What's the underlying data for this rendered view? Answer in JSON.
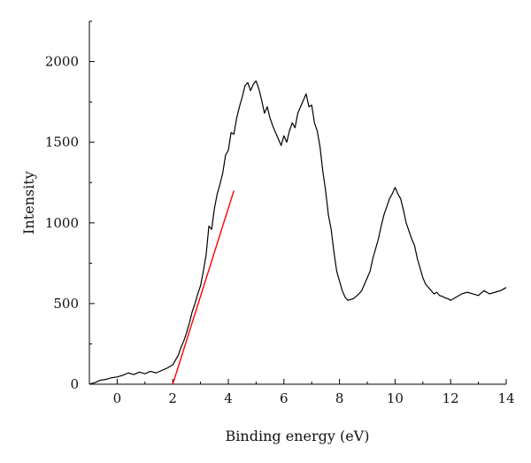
{
  "chart_data": {
    "type": "line",
    "title": "",
    "xlabel": "Binding energy (eV)",
    "ylabel": "Intensity",
    "xlim": [
      -1,
      14
    ],
    "ylim": [
      0,
      2250
    ],
    "x_ticks": [
      0,
      2,
      4,
      6,
      8,
      10,
      12,
      14
    ],
    "y_ticks": [
      0,
      500,
      1000,
      1500,
      2000
    ],
    "x_minor_step": 1,
    "y_minor_step": 250,
    "grid": false,
    "legend": "none",
    "series": [
      {
        "color": "#000000",
        "x": [
          -1.0,
          -0.8,
          -0.6,
          -0.4,
          -0.2,
          0.0,
          0.2,
          0.4,
          0.6,
          0.8,
          1.0,
          1.2,
          1.4,
          1.6,
          1.8,
          2.0,
          2.1,
          2.2,
          2.3,
          2.4,
          2.5,
          2.6,
          2.7,
          2.8,
          2.9,
          3.0,
          3.1,
          3.2,
          3.3,
          3.4,
          3.5,
          3.6,
          3.7,
          3.8,
          3.9,
          4.0,
          4.1,
          4.2,
          4.3,
          4.4,
          4.5,
          4.6,
          4.7,
          4.8,
          4.9,
          5.0,
          5.1,
          5.2,
          5.3,
          5.4,
          5.5,
          5.6,
          5.7,
          5.8,
          5.9,
          6.0,
          6.1,
          6.2,
          6.3,
          6.4,
          6.5,
          6.6,
          6.7,
          6.8,
          6.9,
          7.0,
          7.1,
          7.2,
          7.3,
          7.4,
          7.5,
          7.6,
          7.7,
          7.8,
          7.9,
          8.0,
          8.1,
          8.2,
          8.3,
          8.4,
          8.5,
          8.6,
          8.7,
          8.8,
          8.9,
          9.0,
          9.1,
          9.2,
          9.3,
          9.4,
          9.5,
          9.6,
          9.7,
          9.8,
          9.9,
          10.0,
          10.1,
          10.2,
          10.3,
          10.4,
          10.5,
          10.6,
          10.7,
          10.8,
          10.9,
          11.0,
          11.1,
          11.2,
          11.3,
          11.4,
          11.5,
          11.6,
          11.7,
          11.8,
          11.9,
          12.0,
          12.2,
          12.4,
          12.6,
          12.8,
          13.0,
          13.2,
          13.4,
          13.6,
          13.8,
          14.0
        ],
        "y": [
          0,
          10,
          25,
          30,
          40,
          45,
          55,
          70,
          60,
          75,
          65,
          80,
          70,
          85,
          100,
          120,
          150,
          180,
          230,
          270,
          320,
          380,
          450,
          500,
          560,
          610,
          700,
          800,
          980,
          960,
          1090,
          1180,
          1240,
          1310,
          1420,
          1450,
          1560,
          1550,
          1650,
          1720,
          1780,
          1850,
          1870,
          1820,
          1860,
          1880,
          1830,
          1760,
          1680,
          1720,
          1650,
          1600,
          1560,
          1520,
          1480,
          1540,
          1500,
          1570,
          1620,
          1590,
          1680,
          1720,
          1760,
          1800,
          1720,
          1730,
          1620,
          1570,
          1470,
          1320,
          1200,
          1050,
          960,
          820,
          700,
          640,
          580,
          540,
          520,
          525,
          530,
          545,
          560,
          580,
          620,
          660,
          700,
          780,
          840,
          900,
          980,
          1050,
          1100,
          1150,
          1180,
          1220,
          1180,
          1150,
          1080,
          1000,
          950,
          900,
          860,
          780,
          720,
          660,
          620,
          600,
          580,
          560,
          570,
          550,
          545,
          535,
          530,
          520,
          540,
          560,
          570,
          560,
          550,
          580,
          560,
          570,
          580,
          600
        ]
      },
      {
        "color": "#ff0000",
        "x": [
          2.0,
          4.2
        ],
        "y": [
          0,
          1200
        ]
      }
    ]
  }
}
